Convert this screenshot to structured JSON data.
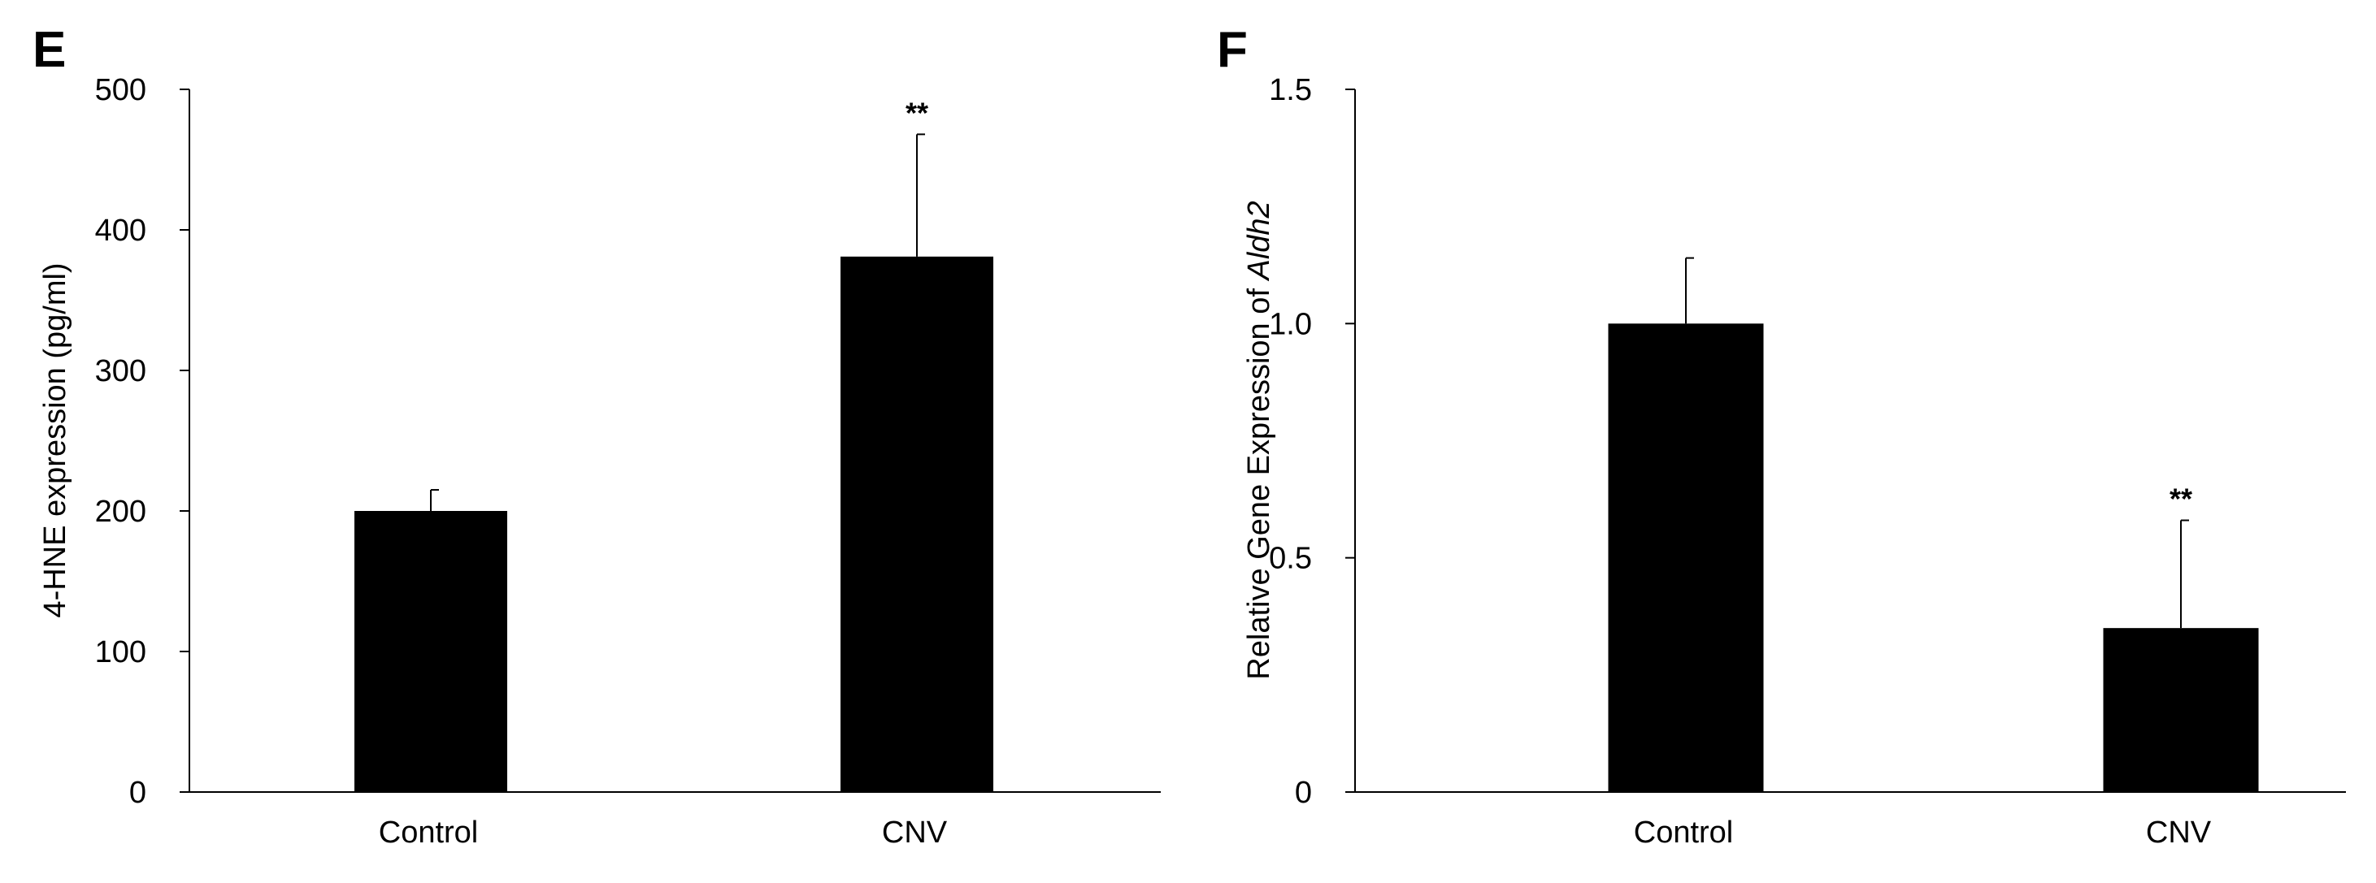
{
  "figure": {
    "panels": [
      "E",
      "F"
    ]
  },
  "chart_data": [
    {
      "panel": "E",
      "type": "bar",
      "title": "",
      "xlabel": "",
      "ylabel": "4-HNE expression (pg/ml)",
      "ylabel_parts": [
        {
          "text": "4-HNE expression (pg/ml)",
          "italic": false
        }
      ],
      "categories": [
        "Control",
        "CNV"
      ],
      "values": [
        200,
        381
      ],
      "errors": [
        15,
        87
      ],
      "significance": [
        "",
        "**"
      ],
      "ylim": [
        0,
        500
      ],
      "yticks": [
        0,
        100,
        200,
        300,
        400,
        500
      ],
      "ytick_labels": [
        "0",
        "100",
        "200",
        "300",
        "400",
        "500"
      ],
      "bar_color": "#000000",
      "grid": false
    },
    {
      "panel": "F",
      "type": "bar",
      "title": "",
      "xlabel": "",
      "ylabel": "Relative Gene Expression of Aldh2",
      "ylabel_parts": [
        {
          "text": "Relative Gene Expression of ",
          "italic": false
        },
        {
          "text": "Aldh2",
          "italic": true
        }
      ],
      "categories": [
        "Control",
        "CNV"
      ],
      "values": [
        1.0,
        0.35
      ],
      "errors": [
        0.14,
        0.23
      ],
      "significance": [
        "",
        "**"
      ],
      "ylim": [
        0,
        1.5
      ],
      "yticks": [
        0,
        0.5,
        1.0,
        1.5
      ],
      "ytick_labels": [
        "0",
        "0.5",
        "1.0",
        "1.5"
      ],
      "bar_color": "#000000",
      "grid": false
    }
  ]
}
